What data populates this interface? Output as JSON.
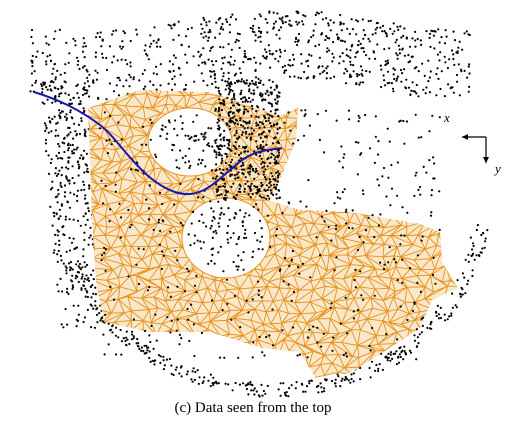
{
  "figure": {
    "caption": "(c) Data seen from the top",
    "axis_x_label": "x",
    "axis_y_label": "y"
  }
}
